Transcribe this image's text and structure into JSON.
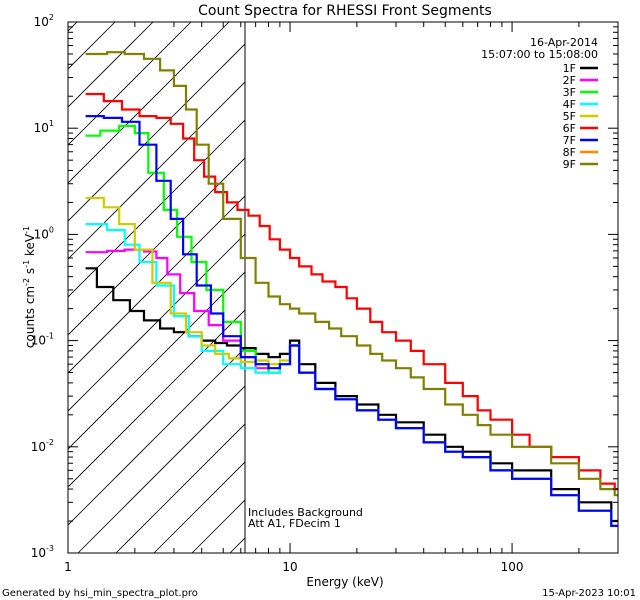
{
  "chart_data": {
    "type": "line",
    "title": "Count Spectra for RHESSI Front Segments",
    "xlabel": "Energy (keV)",
    "ylabel": {
      "base": "counts cm",
      "exp1": "-2",
      "mid": " s",
      "exp2": "-1",
      "unit": " keV",
      "exp3": "-1"
    },
    "xscale": "log",
    "yscale": "log",
    "xlim": [
      1,
      300
    ],
    "ylim": [
      0.001,
      100
    ],
    "xticks": [
      {
        "value": 1,
        "label": "1"
      },
      {
        "value": 10,
        "label": "10"
      },
      {
        "value": 100,
        "label": "100"
      }
    ],
    "yticks": [
      {
        "value": 0.001,
        "base": "10",
        "exp": "-3"
      },
      {
        "value": 0.01,
        "base": "10",
        "exp": "-2"
      },
      {
        "value": 0.1,
        "base": "10",
        "exp": "-1"
      },
      {
        "value": 1,
        "base": "10",
        "exp": "0"
      },
      {
        "value": 10,
        "base": "10",
        "exp": "1"
      },
      {
        "value": 100,
        "base": "10",
        "exp": "2"
      }
    ],
    "hatched_region": {
      "x_max_kev": 6
    },
    "legend": {
      "position": "top-right",
      "date": "16-Apr-2014",
      "time_range": "15:07:00 to 15:08:00"
    },
    "annotations": [
      "Includes Background",
      "Att A1, FDecim  1"
    ],
    "series": [
      {
        "name": "1F",
        "color": "#000000",
        "points": [
          [
            1.2,
            0.48
          ],
          [
            1.35,
            0.32
          ],
          [
            1.6,
            0.24
          ],
          [
            1.9,
            0.19
          ],
          [
            2.2,
            0.155
          ],
          [
            2.6,
            0.13
          ],
          [
            3.0,
            0.12
          ],
          [
            3.5,
            0.11
          ],
          [
            4,
            0.1
          ],
          [
            4.6,
            0.095
          ],
          [
            5.2,
            0.09
          ],
          [
            6,
            0.085
          ],
          [
            7,
            0.075
          ],
          [
            8,
            0.07
          ],
          [
            9,
            0.075
          ],
          [
            10,
            0.1
          ],
          [
            11,
            0.06
          ],
          [
            13,
            0.04
          ],
          [
            16,
            0.03
          ],
          [
            20,
            0.025
          ],
          [
            25,
            0.02
          ],
          [
            30,
            0.017
          ],
          [
            40,
            0.013
          ],
          [
            50,
            0.01
          ],
          [
            60,
            0.009
          ],
          [
            80,
            0.007
          ],
          [
            100,
            0.006
          ],
          [
            150,
            0.004
          ],
          [
            200,
            0.003
          ],
          [
            280,
            0.002
          ]
        ]
      },
      {
        "name": "2F",
        "color": "#ff00ff",
        "points": [
          [
            1.2,
            0.68
          ],
          [
            1.5,
            0.7
          ],
          [
            1.8,
            0.72
          ],
          [
            2.2,
            0.69
          ],
          [
            2.5,
            0.6
          ],
          [
            2.8,
            0.42
          ],
          [
            3.2,
            0.28
          ],
          [
            3.7,
            0.19
          ],
          [
            4.3,
            0.14
          ],
          [
            5,
            0.1
          ],
          [
            6,
            0.07
          ],
          [
            7,
            0.055
          ],
          [
            8,
            0.05
          ],
          [
            9,
            0.06
          ],
          [
            10,
            0.09
          ],
          [
            11,
            0.05
          ],
          [
            13,
            0.035
          ],
          [
            16,
            0.028
          ],
          [
            20,
            0.022
          ],
          [
            25,
            0.018
          ],
          [
            30,
            0.015
          ],
          [
            40,
            0.011
          ],
          [
            50,
            0.009
          ],
          [
            60,
            0.008
          ],
          [
            80,
            0.006
          ],
          [
            100,
            0.005
          ],
          [
            150,
            0.0035
          ],
          [
            200,
            0.0025
          ],
          [
            280,
            0.0018
          ]
        ]
      },
      {
        "name": "3F",
        "color": "#00ff00",
        "points": [
          [
            1.2,
            8.5
          ],
          [
            1.4,
            9.5
          ],
          [
            1.7,
            10.5
          ],
          [
            2.0,
            9.0
          ],
          [
            2.3,
            3.8
          ],
          [
            2.7,
            1.7
          ],
          [
            3.1,
            0.95
          ],
          [
            3.6,
            0.55
          ],
          [
            4.2,
            0.3
          ],
          [
            5,
            0.15
          ],
          [
            6,
            0.08
          ],
          [
            7,
            0.06
          ],
          [
            8,
            0.05
          ],
          [
            9,
            0.06
          ],
          [
            10,
            0.09
          ],
          [
            11,
            0.05
          ],
          [
            13,
            0.035
          ],
          [
            16,
            0.028
          ],
          [
            20,
            0.022
          ],
          [
            25,
            0.018
          ],
          [
            30,
            0.015
          ],
          [
            40,
            0.011
          ],
          [
            50,
            0.009
          ],
          [
            60,
            0.008
          ],
          [
            80,
            0.006
          ],
          [
            100,
            0.005
          ],
          [
            150,
            0.0035
          ],
          [
            200,
            0.0025
          ],
          [
            280,
            0.0018
          ]
        ]
      },
      {
        "name": "4F",
        "color": "#00ffff",
        "points": [
          [
            1.2,
            1.25
          ],
          [
            1.5,
            1.1
          ],
          [
            1.8,
            0.8
          ],
          [
            2.1,
            0.55
          ],
          [
            2.5,
            0.33
          ],
          [
            3,
            0.17
          ],
          [
            3.5,
            0.11
          ],
          [
            4,
            0.08
          ],
          [
            5,
            0.06
          ],
          [
            6,
            0.055
          ],
          [
            7,
            0.05
          ],
          [
            8,
            0.05
          ],
          [
            9,
            0.06
          ],
          [
            10,
            0.09
          ],
          [
            11,
            0.05
          ],
          [
            13,
            0.035
          ],
          [
            16,
            0.028
          ],
          [
            20,
            0.022
          ],
          [
            25,
            0.018
          ],
          [
            30,
            0.015
          ],
          [
            40,
            0.011
          ],
          [
            50,
            0.009
          ],
          [
            60,
            0.008
          ],
          [
            80,
            0.006
          ],
          [
            100,
            0.005
          ],
          [
            150,
            0.0035
          ],
          [
            200,
            0.0025
          ],
          [
            280,
            0.0018
          ]
        ]
      },
      {
        "name": "5F",
        "color": "#cccc00",
        "points": [
          [
            1.2,
            2.2
          ],
          [
            1.45,
            1.8
          ],
          [
            1.7,
            1.25
          ],
          [
            2.0,
            0.72
          ],
          [
            2.4,
            0.35
          ],
          [
            2.9,
            0.18
          ],
          [
            3.4,
            0.12
          ],
          [
            4,
            0.09
          ],
          [
            4.6,
            0.075
          ],
          [
            5.3,
            0.068
          ],
          [
            6,
            0.063
          ],
          [
            7,
            0.065
          ],
          [
            8,
            0.06
          ],
          [
            9,
            0.065
          ],
          [
            10,
            0.09
          ],
          [
            11,
            0.05
          ],
          [
            13,
            0.035
          ],
          [
            16,
            0.028
          ],
          [
            20,
            0.022
          ],
          [
            25,
            0.018
          ],
          [
            30,
            0.015
          ],
          [
            40,
            0.011
          ],
          [
            50,
            0.009
          ],
          [
            60,
            0.008
          ],
          [
            80,
            0.006
          ],
          [
            100,
            0.005
          ],
          [
            150,
            0.0035
          ],
          [
            200,
            0.0025
          ],
          [
            280,
            0.0018
          ]
        ]
      },
      {
        "name": "6F",
        "color": "#ff0000",
        "points": [
          [
            1.2,
            21
          ],
          [
            1.45,
            18
          ],
          [
            1.75,
            15
          ],
          [
            2.1,
            13
          ],
          [
            2.5,
            12.5
          ],
          [
            2.9,
            11
          ],
          [
            3.3,
            8
          ],
          [
            3.7,
            5
          ],
          [
            4.1,
            3.5
          ],
          [
            4.6,
            2.5
          ],
          [
            5.2,
            2.0
          ],
          [
            5.8,
            1.7
          ],
          [
            6.5,
            1.5
          ],
          [
            7.3,
            1.2
          ],
          [
            8.1,
            0.9
          ],
          [
            9,
            0.72
          ],
          [
            10,
            0.6
          ],
          [
            11,
            0.5
          ],
          [
            12.5,
            0.42
          ],
          [
            14,
            0.36
          ],
          [
            16,
            0.32
          ],
          [
            18,
            0.25
          ],
          [
            20,
            0.2
          ],
          [
            23,
            0.15
          ],
          [
            26,
            0.12
          ],
          [
            30,
            0.1
          ],
          [
            35,
            0.08
          ],
          [
            40,
            0.06
          ],
          [
            50,
            0.04
          ],
          [
            60,
            0.03
          ],
          [
            70,
            0.022
          ],
          [
            80,
            0.018
          ],
          [
            100,
            0.013
          ],
          [
            120,
            0.01
          ],
          [
            150,
            0.008
          ],
          [
            200,
            0.006
          ],
          [
            250,
            0.0045
          ],
          [
            290,
            0.004
          ]
        ]
      },
      {
        "name": "7F",
        "color": "#0000ff",
        "points": [
          [
            1.2,
            13
          ],
          [
            1.45,
            12.5
          ],
          [
            1.75,
            11.5
          ],
          [
            2.1,
            7
          ],
          [
            2.5,
            3.2
          ],
          [
            2.9,
            1.4
          ],
          [
            3.3,
            0.65
          ],
          [
            3.8,
            0.33
          ],
          [
            4.4,
            0.18
          ],
          [
            5,
            0.11
          ],
          [
            6,
            0.07
          ],
          [
            7,
            0.06
          ],
          [
            8,
            0.055
          ],
          [
            9,
            0.06
          ],
          [
            10,
            0.09
          ],
          [
            11,
            0.05
          ],
          [
            13,
            0.035
          ],
          [
            16,
            0.028
          ],
          [
            20,
            0.022
          ],
          [
            25,
            0.018
          ],
          [
            30,
            0.015
          ],
          [
            40,
            0.011
          ],
          [
            50,
            0.009
          ],
          [
            60,
            0.008
          ],
          [
            80,
            0.006
          ],
          [
            100,
            0.005
          ],
          [
            150,
            0.0035
          ],
          [
            200,
            0.0025
          ],
          [
            280,
            0.0018
          ]
        ]
      },
      {
        "name": "8F",
        "color": "#ff8800",
        "points": []
      },
      {
        "name": "9F",
        "color": "#808000",
        "points": [
          [
            1.2,
            50
          ],
          [
            1.5,
            52
          ],
          [
            1.8,
            50
          ],
          [
            2.2,
            45
          ],
          [
            2.6,
            35
          ],
          [
            3.0,
            25
          ],
          [
            3.4,
            15
          ],
          [
            3.8,
            7
          ],
          [
            4.3,
            3.0
          ],
          [
            5,
            1.4
          ],
          [
            6,
            0.6
          ],
          [
            7,
            0.35
          ],
          [
            8,
            0.26
          ],
          [
            9,
            0.22
          ],
          [
            10,
            0.2
          ],
          [
            11,
            0.18
          ],
          [
            13,
            0.15
          ],
          [
            15,
            0.13
          ],
          [
            17,
            0.11
          ],
          [
            20,
            0.09
          ],
          [
            23,
            0.075
          ],
          [
            26,
            0.065
          ],
          [
            30,
            0.055
          ],
          [
            35,
            0.045
          ],
          [
            40,
            0.035
          ],
          [
            50,
            0.025
          ],
          [
            60,
            0.02
          ],
          [
            70,
            0.016
          ],
          [
            80,
            0.013
          ],
          [
            100,
            0.01
          ],
          [
            150,
            0.007
          ],
          [
            200,
            0.005
          ],
          [
            250,
            0.004
          ],
          [
            290,
            0.0035
          ]
        ]
      }
    ]
  },
  "footer": {
    "generated_by": "Generated by hsi_min_spectra_plot.pro",
    "timestamp": "15-Apr-2023 10:01"
  }
}
